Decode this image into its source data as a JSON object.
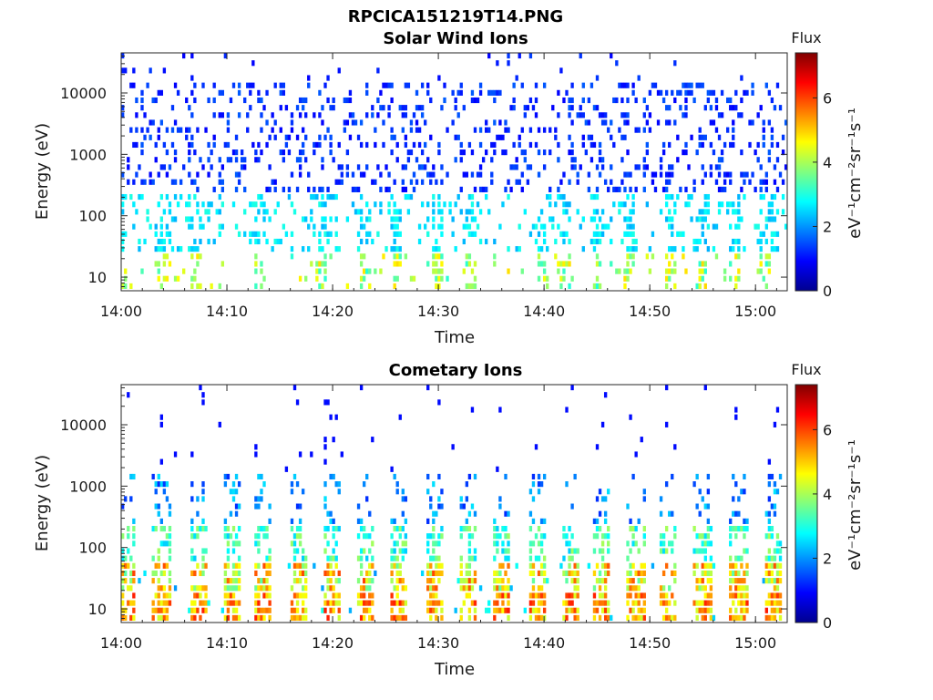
{
  "figure_title": "RPCICA151219T14.PNG",
  "chart_data": [
    {
      "type": "heatmap",
      "title": "Solar Wind Ions",
      "xlabel": "Time",
      "ylabel": "Energy (eV)",
      "x_ticks": [
        "14:00",
        "14:10",
        "14:20",
        "14:30",
        "14:40",
        "14:50",
        "15:00"
      ],
      "xlim_minutes": [
        0,
        63
      ],
      "y_scale": "log",
      "y_ticks": [
        {
          "value": 10,
          "label": "10"
        },
        {
          "value": 100,
          "label": "100"
        },
        {
          "value": 1000,
          "label": "1000"
        },
        {
          "value": 10000,
          "label": "10000"
        }
      ],
      "ylim": [
        6,
        45000
      ],
      "colorbar": {
        "title": "Flux",
        "unit": "eV⁻¹cm⁻²sr⁻¹s⁻¹",
        "ticks": [
          "0",
          "2",
          "4",
          "6"
        ],
        "range": [
          0,
          7.4
        ],
        "colormap": "jet"
      },
      "pattern": "sparse_scatter",
      "bursts_minutes": [
        0,
        4,
        7,
        13,
        19,
        23,
        26,
        30,
        33,
        40,
        42,
        45,
        48,
        52,
        55,
        58,
        61
      ]
    },
    {
      "type": "heatmap",
      "title": "Cometary Ions",
      "xlabel": "Time",
      "ylabel": "Energy (eV)",
      "x_ticks": [
        "14:00",
        "14:10",
        "14:20",
        "14:30",
        "14:40",
        "14:50",
        "15:00"
      ],
      "xlim_minutes": [
        0,
        63
      ],
      "y_scale": "log",
      "y_ticks": [
        {
          "value": 10,
          "label": "10"
        },
        {
          "value": 100,
          "label": "100"
        },
        {
          "value": 1000,
          "label": "1000"
        },
        {
          "value": 10000,
          "label": "10000"
        }
      ],
      "ylim": [
        6,
        45000
      ],
      "colorbar": {
        "title": "Flux",
        "unit": "eV⁻¹cm⁻²sr⁻¹s⁻¹",
        "ticks": [
          "0",
          "2",
          "4",
          "6"
        ],
        "range": [
          0,
          7.4
        ],
        "colormap": "jet"
      },
      "pattern": "periodic_bursts",
      "bursts_minutes": [
        0.4,
        3.8,
        7.3,
        10.5,
        13.5,
        16.8,
        19.9,
        23.2,
        26.3,
        29.6,
        32.7,
        36.0,
        39.3,
        42.5,
        45.4,
        48.7,
        51.8,
        55.0,
        58.4,
        61.6
      ]
    }
  ]
}
